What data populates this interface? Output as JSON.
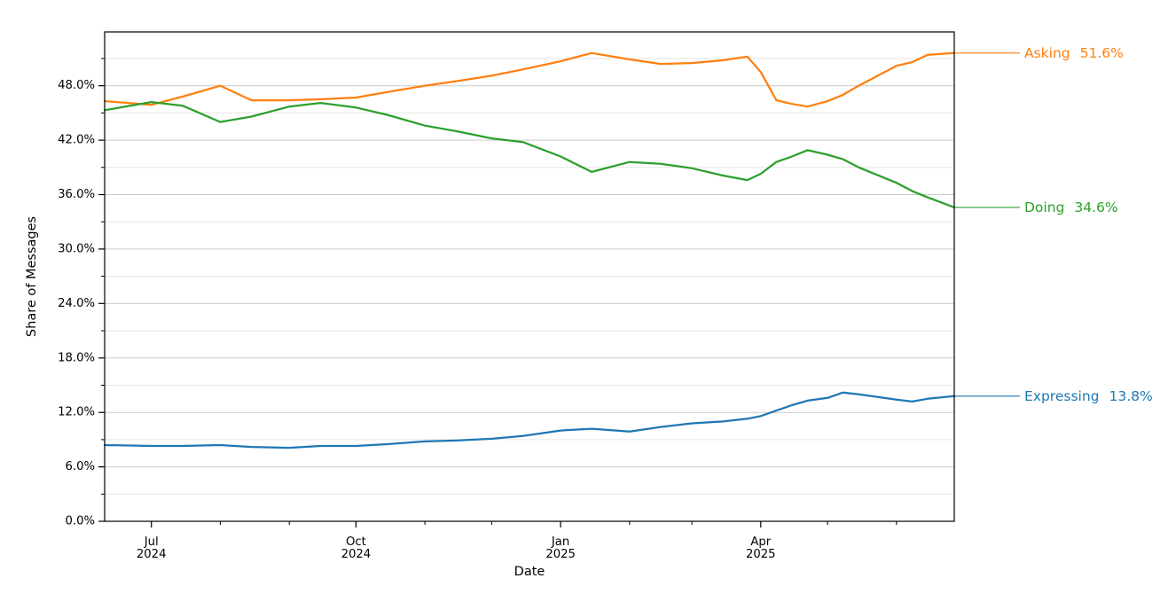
{
  "chart_data": {
    "type": "line",
    "title": "",
    "xlabel": "Date",
    "ylabel": "Share of Messages",
    "x_dates": [
      "2024-06-10",
      "2024-07-01",
      "2024-07-15",
      "2024-08-01",
      "2024-08-15",
      "2024-09-01",
      "2024-09-15",
      "2024-10-01",
      "2024-10-15",
      "2024-11-01",
      "2024-11-15",
      "2024-12-01",
      "2024-12-15",
      "2025-01-01",
      "2025-01-15",
      "2025-02-01",
      "2025-02-15",
      "2025-03-01",
      "2025-03-15",
      "2025-03-26",
      "2025-04-01",
      "2025-04-08",
      "2025-04-15",
      "2025-04-22",
      "2025-05-01",
      "2025-05-08",
      "2025-05-15",
      "2025-06-01",
      "2025-06-08",
      "2025-06-15",
      "2025-06-27"
    ],
    "series": [
      {
        "name": "Asking",
        "color": "#ff7f0e",
        "end_label": {
          "text": "Asking",
          "value": "51.6%"
        },
        "values": [
          46.3,
          45.9,
          46.8,
          48.0,
          46.4,
          46.4,
          46.5,
          46.7,
          47.3,
          48.0,
          48.5,
          49.1,
          49.8,
          50.7,
          51.6,
          50.9,
          50.4,
          50.5,
          50.8,
          51.2,
          49.5,
          46.4,
          46.0,
          45.7,
          46.3,
          47.0,
          48.0,
          50.2,
          50.6,
          51.4,
          51.6
        ]
      },
      {
        "name": "Doing",
        "color": "#2ca02c",
        "end_label": {
          "text": "Doing",
          "value": "34.6%"
        },
        "values": [
          45.3,
          46.2,
          45.8,
          44.0,
          44.6,
          45.7,
          46.1,
          45.6,
          44.8,
          43.6,
          43.0,
          42.2,
          41.8,
          40.2,
          38.5,
          39.6,
          39.4,
          38.9,
          38.1,
          37.6,
          38.3,
          39.6,
          40.2,
          40.9,
          40.4,
          39.9,
          39.0,
          37.3,
          36.4,
          35.7,
          34.6
        ]
      },
      {
        "name": "Expressing",
        "color": "#1f77b4",
        "end_label": {
          "text": "Expressing",
          "value": "13.8%"
        },
        "values": [
          8.4,
          8.3,
          8.3,
          8.4,
          8.2,
          8.1,
          8.3,
          8.3,
          8.5,
          8.8,
          8.9,
          9.1,
          9.4,
          10.0,
          10.2,
          9.9,
          10.4,
          10.8,
          11.0,
          11.3,
          11.6,
          12.2,
          12.8,
          13.3,
          13.6,
          14.2,
          14.0,
          13.4,
          13.2,
          13.5,
          13.8
        ]
      }
    ],
    "ylim": [
      0,
      53.93
    ],
    "yticks": {
      "values": [
        0,
        6,
        12,
        18,
        24,
        30,
        36,
        42,
        48
      ],
      "labels": [
        "0.0%",
        "6.0%",
        "12.0%",
        "18.0%",
        "24.0%",
        "30.0%",
        "36.0%",
        "42.0%",
        "48.0%"
      ],
      "minor_values": [
        3,
        9,
        15,
        21,
        27,
        33,
        39,
        45,
        51
      ]
    },
    "xticks_major": [
      {
        "date": "2024-07-01",
        "line1": "Jul",
        "line2": "2024"
      },
      {
        "date": "2024-10-01",
        "line1": "Oct",
        "line2": "2024"
      },
      {
        "date": "2025-01-01",
        "line1": "Jan",
        "line2": "2025"
      },
      {
        "date": "2025-04-01",
        "line1": "Apr",
        "line2": "2025"
      }
    ],
    "xticks_minor_dates": [
      "2024-08-01",
      "2024-09-01",
      "2024-11-01",
      "2024-12-01",
      "2025-02-01",
      "2025-03-01",
      "2025-05-01",
      "2025-06-01"
    ],
    "grid": true,
    "legend_position": "right-end-annotations",
    "colors": {
      "grid_major": "#c9c9c9",
      "grid_minor": "#e5e5e5",
      "axis": "#000000",
      "text": "#000000"
    }
  }
}
